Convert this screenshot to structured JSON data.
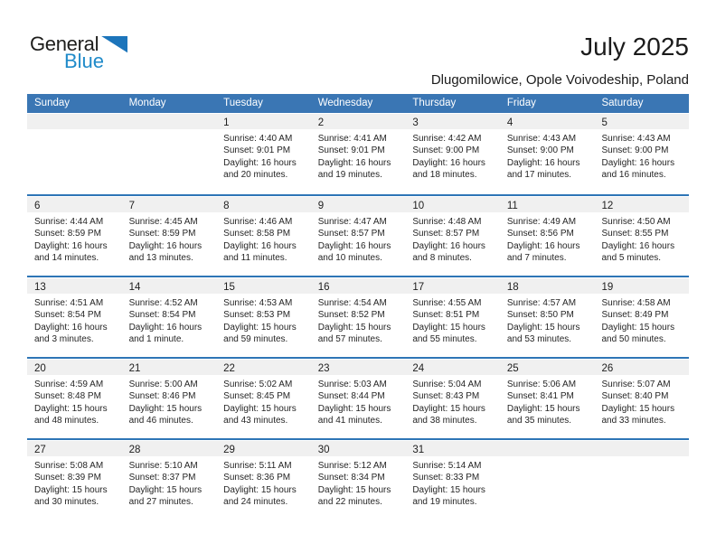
{
  "logo": {
    "part1": "General",
    "part2": "Blue"
  },
  "header": {
    "title": "July 2025",
    "location": "Dlugomilowice, Opole Voivodeship, Poland"
  },
  "colors": {
    "weekday_bar": "#3a76b4",
    "row_divider": "#2e75b6",
    "day_band": "#f0f0f0",
    "logo_blue": "#1f8ac9",
    "logo_triangle": "#1c75bb"
  },
  "weekdays": [
    "Sunday",
    "Monday",
    "Tuesday",
    "Wednesday",
    "Thursday",
    "Friday",
    "Saturday"
  ],
  "weeks": [
    [
      null,
      null,
      {
        "day": "1",
        "sunrise": "Sunrise: 4:40 AM",
        "sunset": "Sunset: 9:01 PM",
        "daylight": [
          "Daylight: 16 hours",
          "and 20 minutes."
        ]
      },
      {
        "day": "2",
        "sunrise": "Sunrise: 4:41 AM",
        "sunset": "Sunset: 9:01 PM",
        "daylight": [
          "Daylight: 16 hours",
          "and 19 minutes."
        ]
      },
      {
        "day": "3",
        "sunrise": "Sunrise: 4:42 AM",
        "sunset": "Sunset: 9:00 PM",
        "daylight": [
          "Daylight: 16 hours",
          "and 18 minutes."
        ]
      },
      {
        "day": "4",
        "sunrise": "Sunrise: 4:43 AM",
        "sunset": "Sunset: 9:00 PM",
        "daylight": [
          "Daylight: 16 hours",
          "and 17 minutes."
        ]
      },
      {
        "day": "5",
        "sunrise": "Sunrise: 4:43 AM",
        "sunset": "Sunset: 9:00 PM",
        "daylight": [
          "Daylight: 16 hours",
          "and 16 minutes."
        ]
      }
    ],
    [
      {
        "day": "6",
        "sunrise": "Sunrise: 4:44 AM",
        "sunset": "Sunset: 8:59 PM",
        "daylight": [
          "Daylight: 16 hours",
          "and 14 minutes."
        ]
      },
      {
        "day": "7",
        "sunrise": "Sunrise: 4:45 AM",
        "sunset": "Sunset: 8:59 PM",
        "daylight": [
          "Daylight: 16 hours",
          "and 13 minutes."
        ]
      },
      {
        "day": "8",
        "sunrise": "Sunrise: 4:46 AM",
        "sunset": "Sunset: 8:58 PM",
        "daylight": [
          "Daylight: 16 hours",
          "and 11 minutes."
        ]
      },
      {
        "day": "9",
        "sunrise": "Sunrise: 4:47 AM",
        "sunset": "Sunset: 8:57 PM",
        "daylight": [
          "Daylight: 16 hours",
          "and 10 minutes."
        ]
      },
      {
        "day": "10",
        "sunrise": "Sunrise: 4:48 AM",
        "sunset": "Sunset: 8:57 PM",
        "daylight": [
          "Daylight: 16 hours",
          "and 8 minutes."
        ]
      },
      {
        "day": "11",
        "sunrise": "Sunrise: 4:49 AM",
        "sunset": "Sunset: 8:56 PM",
        "daylight": [
          "Daylight: 16 hours",
          "and 7 minutes."
        ]
      },
      {
        "day": "12",
        "sunrise": "Sunrise: 4:50 AM",
        "sunset": "Sunset: 8:55 PM",
        "daylight": [
          "Daylight: 16 hours",
          "and 5 minutes."
        ]
      }
    ],
    [
      {
        "day": "13",
        "sunrise": "Sunrise: 4:51 AM",
        "sunset": "Sunset: 8:54 PM",
        "daylight": [
          "Daylight: 16 hours",
          "and 3 minutes."
        ]
      },
      {
        "day": "14",
        "sunrise": "Sunrise: 4:52 AM",
        "sunset": "Sunset: 8:54 PM",
        "daylight": [
          "Daylight: 16 hours",
          "and 1 minute."
        ]
      },
      {
        "day": "15",
        "sunrise": "Sunrise: 4:53 AM",
        "sunset": "Sunset: 8:53 PM",
        "daylight": [
          "Daylight: 15 hours",
          "and 59 minutes."
        ]
      },
      {
        "day": "16",
        "sunrise": "Sunrise: 4:54 AM",
        "sunset": "Sunset: 8:52 PM",
        "daylight": [
          "Daylight: 15 hours",
          "and 57 minutes."
        ]
      },
      {
        "day": "17",
        "sunrise": "Sunrise: 4:55 AM",
        "sunset": "Sunset: 8:51 PM",
        "daylight": [
          "Daylight: 15 hours",
          "and 55 minutes."
        ]
      },
      {
        "day": "18",
        "sunrise": "Sunrise: 4:57 AM",
        "sunset": "Sunset: 8:50 PM",
        "daylight": [
          "Daylight: 15 hours",
          "and 53 minutes."
        ]
      },
      {
        "day": "19",
        "sunrise": "Sunrise: 4:58 AM",
        "sunset": "Sunset: 8:49 PM",
        "daylight": [
          "Daylight: 15 hours",
          "and 50 minutes."
        ]
      }
    ],
    [
      {
        "day": "20",
        "sunrise": "Sunrise: 4:59 AM",
        "sunset": "Sunset: 8:48 PM",
        "daylight": [
          "Daylight: 15 hours",
          "and 48 minutes."
        ]
      },
      {
        "day": "21",
        "sunrise": "Sunrise: 5:00 AM",
        "sunset": "Sunset: 8:46 PM",
        "daylight": [
          "Daylight: 15 hours",
          "and 46 minutes."
        ]
      },
      {
        "day": "22",
        "sunrise": "Sunrise: 5:02 AM",
        "sunset": "Sunset: 8:45 PM",
        "daylight": [
          "Daylight: 15 hours",
          "and 43 minutes."
        ]
      },
      {
        "day": "23",
        "sunrise": "Sunrise: 5:03 AM",
        "sunset": "Sunset: 8:44 PM",
        "daylight": [
          "Daylight: 15 hours",
          "and 41 minutes."
        ]
      },
      {
        "day": "24",
        "sunrise": "Sunrise: 5:04 AM",
        "sunset": "Sunset: 8:43 PM",
        "daylight": [
          "Daylight: 15 hours",
          "and 38 minutes."
        ]
      },
      {
        "day": "25",
        "sunrise": "Sunrise: 5:06 AM",
        "sunset": "Sunset: 8:41 PM",
        "daylight": [
          "Daylight: 15 hours",
          "and 35 minutes."
        ]
      },
      {
        "day": "26",
        "sunrise": "Sunrise: 5:07 AM",
        "sunset": "Sunset: 8:40 PM",
        "daylight": [
          "Daylight: 15 hours",
          "and 33 minutes."
        ]
      }
    ],
    [
      {
        "day": "27",
        "sunrise": "Sunrise: 5:08 AM",
        "sunset": "Sunset: 8:39 PM",
        "daylight": [
          "Daylight: 15 hours",
          "and 30 minutes."
        ]
      },
      {
        "day": "28",
        "sunrise": "Sunrise: 5:10 AM",
        "sunset": "Sunset: 8:37 PM",
        "daylight": [
          "Daylight: 15 hours",
          "and 27 minutes."
        ]
      },
      {
        "day": "29",
        "sunrise": "Sunrise: 5:11 AM",
        "sunset": "Sunset: 8:36 PM",
        "daylight": [
          "Daylight: 15 hours",
          "and 24 minutes."
        ]
      },
      {
        "day": "30",
        "sunrise": "Sunrise: 5:12 AM",
        "sunset": "Sunset: 8:34 PM",
        "daylight": [
          "Daylight: 15 hours",
          "and 22 minutes."
        ]
      },
      {
        "day": "31",
        "sunrise": "Sunrise: 5:14 AM",
        "sunset": "Sunset: 8:33 PM",
        "daylight": [
          "Daylight: 15 hours",
          "and 19 minutes."
        ]
      },
      null,
      null
    ]
  ]
}
